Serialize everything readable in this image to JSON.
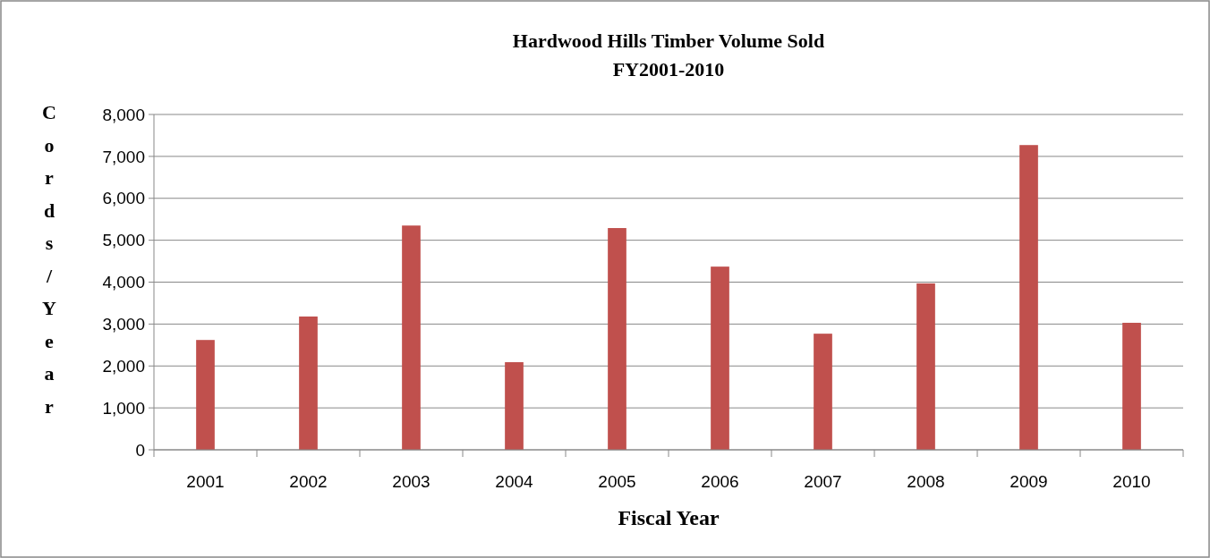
{
  "chart_data": {
    "type": "bar",
    "title": "Hardwood Hills Timber Volume Sold\nFY2001-2010",
    "xlabel": "Fiscal Year",
    "ylabel": "Cords/Year",
    "categories": [
      "2001",
      "2002",
      "2003",
      "2004",
      "2005",
      "2006",
      "2007",
      "2008",
      "2009",
      "2010"
    ],
    "values": [
      2620,
      3180,
      5350,
      2090,
      5290,
      4370,
      2770,
      3970,
      7270,
      3030
    ],
    "color": "#c0504d",
    "ylim": [
      0,
      8000
    ],
    "yticks": [
      {
        "value": 0,
        "label": "0"
      },
      {
        "value": 1000,
        "label": "1,000"
      },
      {
        "value": 2000,
        "label": "2,000"
      },
      {
        "value": 3000,
        "label": "3,000"
      },
      {
        "value": 4000,
        "label": "4,000"
      },
      {
        "value": 5000,
        "label": "5,000"
      },
      {
        "value": 6000,
        "label": "6,000"
      },
      {
        "value": 7000,
        "label": "7,000"
      },
      {
        "value": 8000,
        "label": "8,000"
      }
    ],
    "grid": "y"
  }
}
